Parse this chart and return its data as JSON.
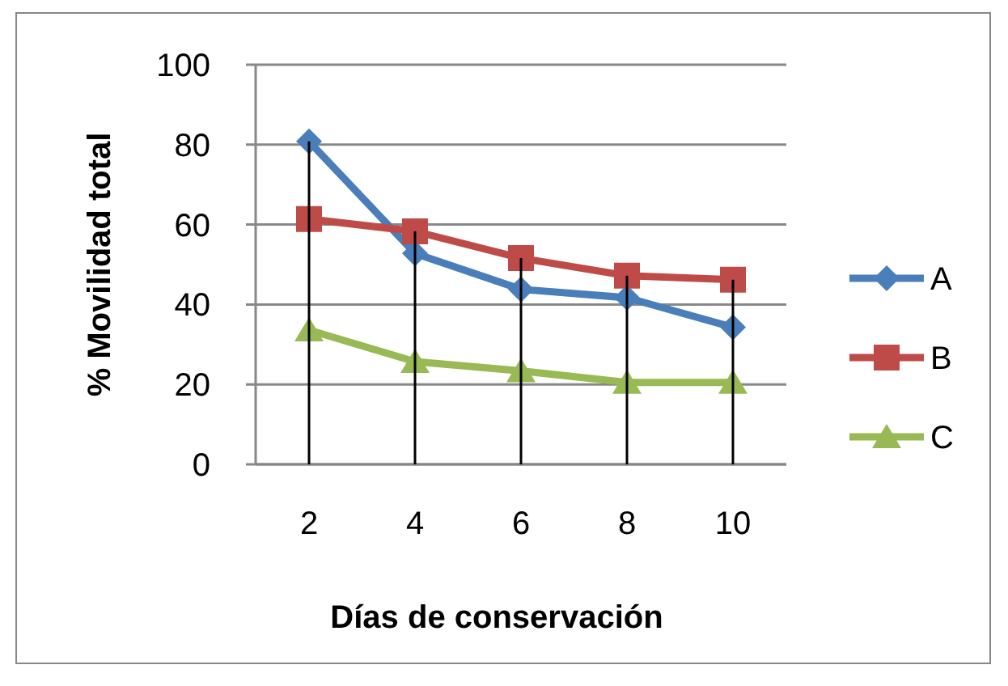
{
  "chart_data": {
    "type": "line",
    "xlabel": "Días de conservación",
    "ylabel": "% Movilidad total",
    "categories": [
      "2",
      "4",
      "6",
      "8",
      "10"
    ],
    "series": [
      {
        "name": "A",
        "color": "#4a7ebb",
        "marker": "diamond",
        "values": [
          80.8,
          52.8,
          43.8,
          41.7,
          34.3
        ]
      },
      {
        "name": "B",
        "color": "#be4b48",
        "marker": "square",
        "values": [
          61.4,
          58.3,
          51.6,
          47.2,
          46.2
        ]
      },
      {
        "name": "C",
        "color": "#98b954",
        "marker": "triangle",
        "values": [
          33.6,
          25.7,
          23.4,
          20.5,
          20.5
        ],
        "errors": [
          [
            0,
            80.8
          ],
          [
            0,
            58.3
          ],
          [
            0,
            51.6
          ],
          [
            0,
            47.2
          ],
          [
            0,
            46.2
          ]
        ]
      }
    ],
    "ylim": [
      0,
      100
    ],
    "yticks": [
      0,
      20,
      40,
      60,
      80,
      100
    ],
    "grid": "y",
    "legend": "right"
  }
}
